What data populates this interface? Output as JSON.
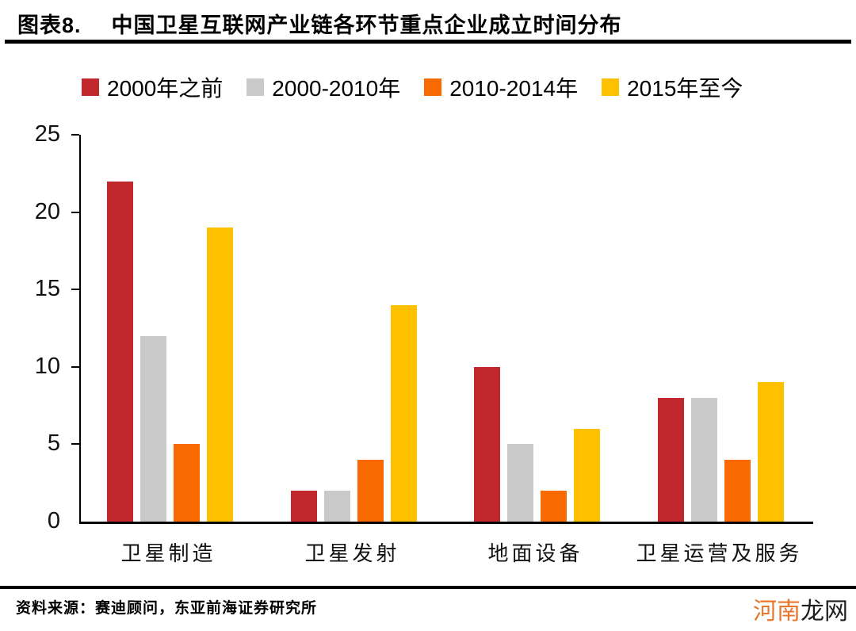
{
  "header": {
    "figure_label": "图表8.",
    "title": "中国卫星互联网产业链各环节重点企业成立时间分布"
  },
  "chart_data": {
    "type": "bar",
    "title": "中国卫星互联网产业链各环节重点企业成立时间分布",
    "categories": [
      "卫星制造",
      "卫星发射",
      "地面设备",
      "卫星运营及服务"
    ],
    "series": [
      {
        "name": "2000年之前",
        "color": "#c2272e",
        "values": [
          22,
          2,
          10,
          8
        ]
      },
      {
        "name": "2000-2010年",
        "color": "#c9c9c9",
        "values": [
          12,
          2,
          5,
          8
        ]
      },
      {
        "name": "2010-2014年",
        "color": "#f96b00",
        "values": [
          5,
          4,
          2,
          4
        ]
      },
      {
        "name": "2015年至今",
        "color": "#ffc000",
        "values": [
          19,
          14,
          6,
          9
        ]
      }
    ],
    "xlabel": "",
    "ylabel": "",
    "ylim": [
      0,
      25
    ],
    "yticks": [
      0,
      5,
      10,
      15,
      20,
      25
    ],
    "grid": false,
    "legend_position": "top"
  },
  "footer": {
    "source": "资料来源：赛迪顾问，东亚前海证券研究所",
    "watermark": {
      "part1": "河南",
      "part2": "龙网",
      "color1": "#e8762c",
      "color2": "#1f1f1f"
    }
  }
}
